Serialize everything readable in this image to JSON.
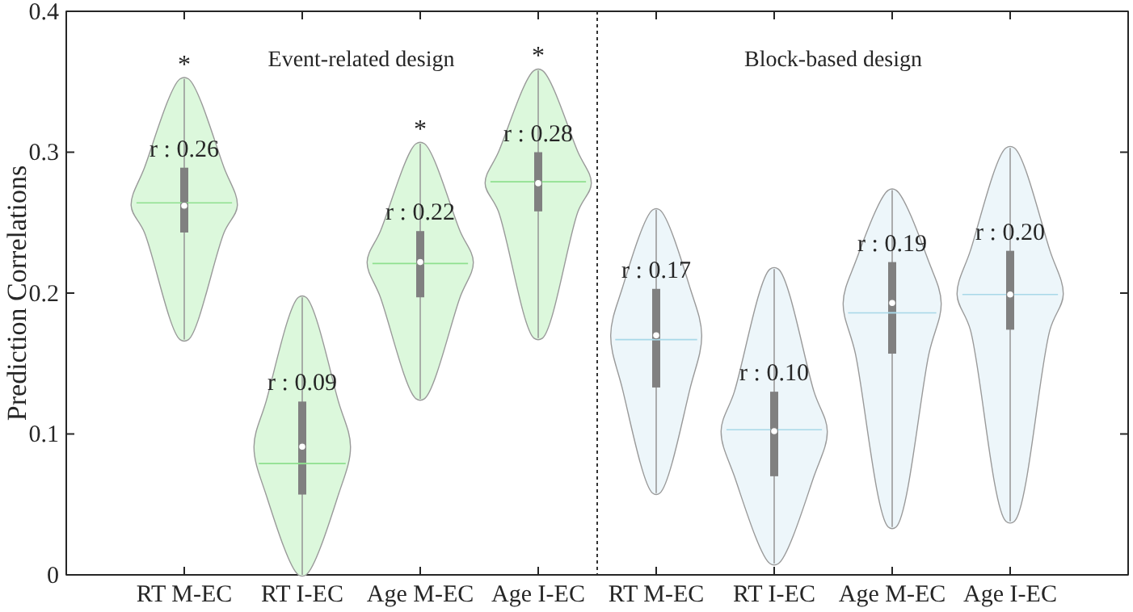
{
  "chart_data": {
    "type": "box",
    "ylabel": "Prediction Correlations",
    "categories": [
      "RT M-EC",
      "RT I-EC",
      "Age M-EC",
      "Age I-EC",
      "RT M-EC",
      "RT I-EC",
      "Age M-EC",
      "Age I-EC"
    ],
    "ylim": [
      0,
      0.4
    ],
    "yticks": [
      0,
      0.1,
      0.2,
      0.3,
      0.4
    ],
    "colors": [
      "#808080",
      "#808080",
      "#808080",
      "#808080",
      "#808080",
      "#808080",
      "#808080",
      "#808080"
    ],
    "boxes": [
      {
        "low": 0.167,
        "q1": 0.243,
        "median": 0.262,
        "q3": 0.289,
        "high": 0.352,
        "mean": 0.264
      },
      {
        "low": 0,
        "q1": 0.057,
        "median": 0.091,
        "q3": 0.123,
        "high": 0.197,
        "mean": 0.079
      },
      {
        "low": 0.125,
        "q1": 0.197,
        "median": 0.222,
        "q3": 0.244,
        "high": 0.306,
        "mean": 0.221
      },
      {
        "low": 0.168,
        "q1": 0.258,
        "median": 0.278,
        "q3": 0.3,
        "high": 0.358,
        "mean": 0.279
      },
      {
        "low": 0.058,
        "q1": 0.133,
        "median": 0.17,
        "q3": 0.203,
        "high": 0.259,
        "mean": 0.167
      },
      {
        "low": 0.008,
        "q1": 0.07,
        "median": 0.102,
        "q3": 0.13,
        "high": 0.217,
        "mean": 0.103
      },
      {
        "low": 0.034,
        "q1": 0.157,
        "median": 0.193,
        "q3": 0.222,
        "high": 0.273,
        "mean": 0.186
      },
      {
        "low": 0.038,
        "q1": 0.174,
        "median": 0.199,
        "q3": 0.23,
        "high": 0.303,
        "mean": 0.199
      }
    ],
    "annotations": [
      "Event-related design",
      "Block-based design",
      "r : 0.26",
      "r : 0.09",
      "r : 0.22",
      "r : 0.28",
      "r : 0.17",
      "r : 0.10",
      "r : 0.19",
      "r : 0.20",
      {
        "text": "*",
        "x": "RT M-EC",
        "y": 0.352
      },
      {
        "text": "*",
        "x": "Age M-EC",
        "y": 0.306
      },
      {
        "text": "*",
        "x": "Age I-EC",
        "y": 0.358
      }
    ]
  }
}
